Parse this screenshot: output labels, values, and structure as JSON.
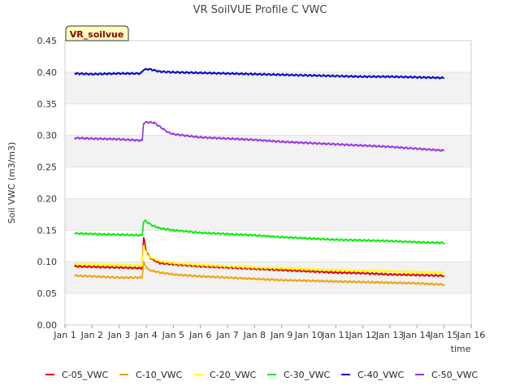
{
  "chart_data": {
    "type": "line",
    "title": "VR SoilVUE Profile C VWC",
    "xlabel": "time",
    "ylabel": "Soil VWC (m3/m3)",
    "site_badge": "VR_soilvue",
    "xlim": [
      1,
      16
    ],
    "ylim": [
      0,
      0.45
    ],
    "x_ticks": [
      1,
      2,
      3,
      4,
      5,
      6,
      7,
      8,
      9,
      10,
      11,
      12,
      13,
      14,
      15,
      16
    ],
    "x_tick_labels": [
      "Jan 1",
      "Jan 2",
      "Jan 3",
      "Jan 4",
      "Jan 5",
      "Jan 6",
      "Jan 7",
      "Jan 8",
      "Jan 9",
      "Jan 10",
      "Jan 11",
      "Jan 12",
      "Jan 13",
      "Jan 14",
      "Jan 15",
      "Jan 16"
    ],
    "y_ticks": [
      0,
      0.05,
      0.1,
      0.15,
      0.2,
      0.25,
      0.3,
      0.35,
      0.4,
      0.45
    ],
    "y_tick_labels": [
      "0.00",
      "0.05",
      "0.10",
      "0.15",
      "0.20",
      "0.25",
      "0.30",
      "0.35",
      "0.40",
      "0.45"
    ],
    "grid": true,
    "legend_position": "bottom",
    "series": [
      {
        "name": "C-05_VWC",
        "color": "#dd0000",
        "points": [
          [
            1.35,
            0.093
          ],
          [
            2,
            0.092
          ],
          [
            3,
            0.091
          ],
          [
            3.75,
            0.09
          ],
          [
            3.85,
            0.09
          ],
          [
            3.9,
            0.138
          ],
          [
            3.95,
            0.13
          ],
          [
            4.0,
            0.115
          ],
          [
            4.2,
            0.104
          ],
          [
            4.5,
            0.098
          ],
          [
            5,
            0.096
          ],
          [
            6,
            0.093
          ],
          [
            7,
            0.091
          ],
          [
            8,
            0.089
          ],
          [
            9,
            0.087
          ],
          [
            10,
            0.085
          ],
          [
            11,
            0.083
          ],
          [
            12,
            0.082
          ],
          [
            13,
            0.08
          ],
          [
            14,
            0.079
          ],
          [
            15,
            0.078
          ]
        ]
      },
      {
        "name": "C-10_VWC",
        "color": "#f0a000",
        "points": [
          [
            1.35,
            0.078
          ],
          [
            2,
            0.077
          ],
          [
            3,
            0.075
          ],
          [
            3.85,
            0.075
          ],
          [
            3.9,
            0.1
          ],
          [
            3.95,
            0.095
          ],
          [
            4.1,
            0.087
          ],
          [
            4.5,
            0.083
          ],
          [
            5,
            0.08
          ],
          [
            6,
            0.077
          ],
          [
            7,
            0.075
          ],
          [
            8,
            0.073
          ],
          [
            9,
            0.071
          ],
          [
            10,
            0.07
          ],
          [
            11,
            0.069
          ],
          [
            12,
            0.068
          ],
          [
            13,
            0.067
          ],
          [
            14,
            0.066
          ],
          [
            15,
            0.064
          ]
        ]
      },
      {
        "name": "C-20_VWC",
        "color": "#ffff00",
        "points": [
          [
            1.35,
            0.097
          ],
          [
            2,
            0.096
          ],
          [
            3,
            0.095
          ],
          [
            3.85,
            0.094
          ],
          [
            3.9,
            0.125
          ],
          [
            3.95,
            0.118
          ],
          [
            4.1,
            0.108
          ],
          [
            4.5,
            0.101
          ],
          [
            5,
            0.098
          ],
          [
            6,
            0.095
          ],
          [
            7,
            0.093
          ],
          [
            8,
            0.091
          ],
          [
            9,
            0.09
          ],
          [
            10,
            0.088
          ],
          [
            11,
            0.087
          ],
          [
            12,
            0.086
          ],
          [
            13,
            0.085
          ],
          [
            14,
            0.084
          ],
          [
            15,
            0.083
          ]
        ]
      },
      {
        "name": "C-30_VWC",
        "color": "#00ee00",
        "points": [
          [
            1.35,
            0.145
          ],
          [
            2,
            0.144
          ],
          [
            3,
            0.143
          ],
          [
            3.85,
            0.142
          ],
          [
            3.9,
            0.163
          ],
          [
            3.95,
            0.165
          ],
          [
            4.2,
            0.158
          ],
          [
            4.5,
            0.153
          ],
          [
            5,
            0.15
          ],
          [
            6,
            0.146
          ],
          [
            7,
            0.144
          ],
          [
            8,
            0.142
          ],
          [
            9,
            0.139
          ],
          [
            10,
            0.137
          ],
          [
            11,
            0.135
          ],
          [
            12,
            0.134
          ],
          [
            13,
            0.133
          ],
          [
            14,
            0.131
          ],
          [
            15,
            0.13
          ]
        ]
      },
      {
        "name": "C-40_VWC",
        "color": "#0000cc",
        "points": [
          [
            1.35,
            0.398
          ],
          [
            2,
            0.397
          ],
          [
            3,
            0.398
          ],
          [
            3.8,
            0.398
          ],
          [
            3.9,
            0.404
          ],
          [
            4.1,
            0.405
          ],
          [
            4.5,
            0.401
          ],
          [
            5,
            0.4
          ],
          [
            6,
            0.399
          ],
          [
            7,
            0.398
          ],
          [
            8,
            0.397
          ],
          [
            9,
            0.396
          ],
          [
            10,
            0.395
          ],
          [
            11,
            0.394
          ],
          [
            12,
            0.393
          ],
          [
            13,
            0.393
          ],
          [
            14,
            0.392
          ],
          [
            15,
            0.391
          ]
        ]
      },
      {
        "name": "C-50_VWC",
        "color": "#9933dd",
        "points": [
          [
            1.35,
            0.296
          ],
          [
            2,
            0.295
          ],
          [
            3,
            0.294
          ],
          [
            3.8,
            0.292
          ],
          [
            3.85,
            0.292
          ],
          [
            3.9,
            0.319
          ],
          [
            4.0,
            0.321
          ],
          [
            4.3,
            0.32
          ],
          [
            4.5,
            0.314
          ],
          [
            4.8,
            0.305
          ],
          [
            5,
            0.302
          ],
          [
            6,
            0.297
          ],
          [
            7,
            0.295
          ],
          [
            8,
            0.293
          ],
          [
            9,
            0.29
          ],
          [
            10,
            0.288
          ],
          [
            11,
            0.286
          ],
          [
            12,
            0.284
          ],
          [
            13,
            0.282
          ],
          [
            14,
            0.279
          ],
          [
            15,
            0.276
          ]
        ]
      }
    ]
  }
}
